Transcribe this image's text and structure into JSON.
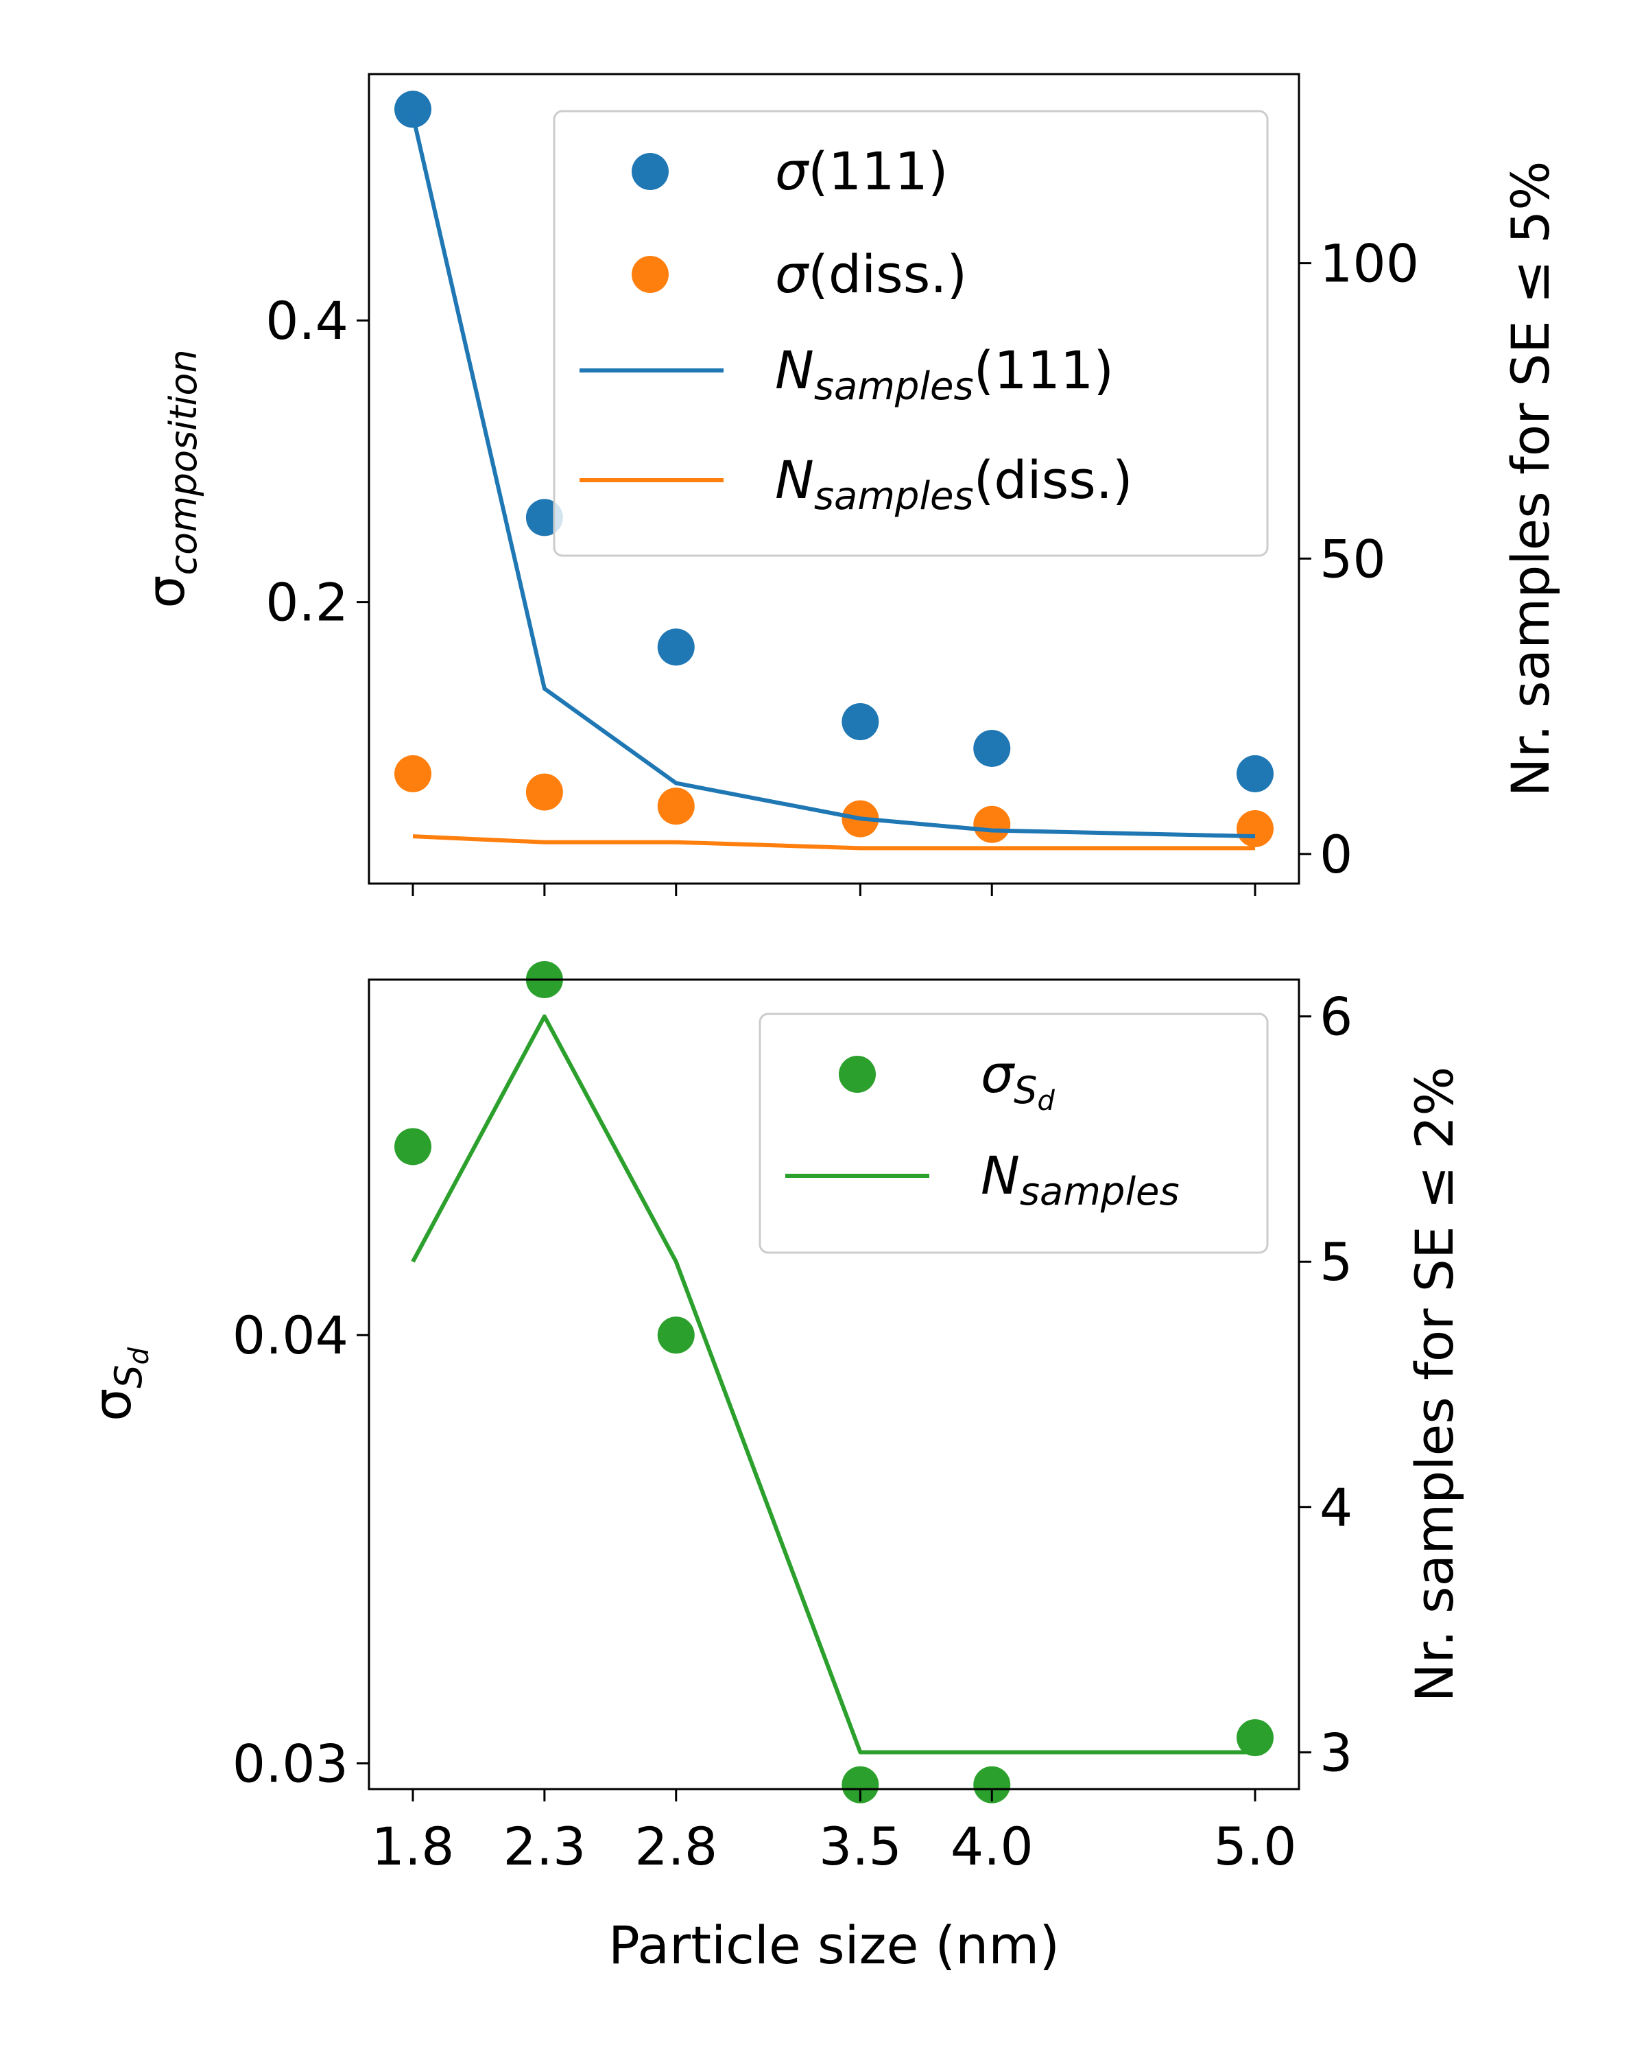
{
  "colors": {
    "blue": "#1f77b4",
    "orange": "#ff7f0e",
    "green": "#2ca02c"
  },
  "chart_data": [
    {
      "type": "scatter+line",
      "panel": "top",
      "categories": [
        "1.8",
        "2.3",
        "2.8",
        "3.5",
        "4.0",
        "5.0"
      ],
      "x": [
        1.8,
        2.3,
        2.8,
        3.5,
        4.0,
        5.0
      ],
      "ylabel": {
        "main": "σ",
        "sub": "composition"
      },
      "ylabel_right": "Nr. samples for SE ≤ 5%",
      "ylim": [
        0.0,
        0.575
      ],
      "yticks": [
        "0.2",
        "0.4"
      ],
      "ylim_right": [
        -5,
        132
      ],
      "yticks_right": [
        "0",
        "50",
        "100"
      ],
      "series": [
        {
          "name": "σ(111)",
          "legend_main": "σ",
          "legend_tail": "(111)",
          "axis": "left",
          "style": "points",
          "color": "#1f77b4",
          "values": [
            0.55,
            0.26,
            0.168,
            0.115,
            0.096,
            0.078
          ]
        },
        {
          "name": "σ(diss.)",
          "legend_main": "σ",
          "legend_tail": "(diss.)",
          "axis": "left",
          "style": "points",
          "color": "#ff7f0e",
          "values": [
            0.078,
            0.065,
            0.055,
            0.046,
            0.042,
            0.039
          ]
        },
        {
          "name": "Nsamples(111)",
          "legend_main": "N",
          "legend_sub": "samples",
          "legend_tail": "(111)",
          "axis": "right",
          "style": "line",
          "color": "#1f77b4",
          "values": [
            125,
            28,
            12,
            6,
            4,
            3
          ]
        },
        {
          "name": "Nsamples(diss.)",
          "legend_main": "N",
          "legend_sub": "samples",
          "legend_tail": "(diss.)",
          "axis": "right",
          "style": "line",
          "color": "#ff7f0e",
          "values": [
            3,
            2,
            2,
            1,
            1,
            1
          ]
        }
      ]
    },
    {
      "type": "scatter+line",
      "panel": "bottom",
      "categories": [
        "1.8",
        "2.3",
        "2.8",
        "3.5",
        "4.0",
        "5.0"
      ],
      "x": [
        1.8,
        2.3,
        2.8,
        3.5,
        4.0,
        5.0
      ],
      "xlabel": "Particle size (nm)",
      "ylabel": {
        "main": "σ",
        "sub": "S",
        "subsub": "d"
      },
      "ylabel_right": "Nr. samples for SE ≤ 2%",
      "ylim": [
        0.0294,
        0.0483
      ],
      "yticks": [
        "0.03",
        "0.04"
      ],
      "ylim_right": [
        2.85,
        6.15
      ],
      "yticks_right": [
        "3",
        "4",
        "5",
        "6"
      ],
      "series": [
        {
          "name": "σSd",
          "legend_main": "σ",
          "legend_sub": "S",
          "legend_subsub": "d",
          "axis": "left",
          "style": "points",
          "color": "#2ca02c",
          "values": [
            0.0444,
            0.0483,
            0.04,
            0.0295,
            0.0295,
            0.0306
          ]
        },
        {
          "name": "Nsamples",
          "legend_main": "N",
          "legend_sub": "samples",
          "axis": "right",
          "style": "line",
          "color": "#2ca02c",
          "values": [
            5,
            6,
            5,
            3,
            3,
            3
          ]
        }
      ]
    }
  ]
}
